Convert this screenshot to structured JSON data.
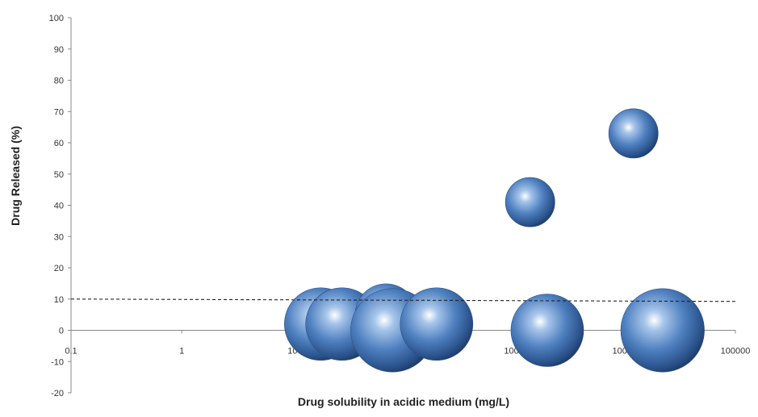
{
  "chart_data": {
    "type": "bubble",
    "title": "",
    "xlabel": "Drug solubility in acidic medium (mg/L)",
    "ylabel": "Drug Released (%)",
    "xscale": "log",
    "xlim": [
      0.1,
      100000
    ],
    "ylim": [
      -20,
      100
    ],
    "x_ticks": [
      "0.1",
      "1",
      "10",
      "100",
      "1000",
      "10000",
      "100000"
    ],
    "y_ticks": [
      "100",
      "90",
      "80",
      "70",
      "60",
      "50",
      "40",
      "30",
      "20",
      "10",
      "0",
      "-10",
      "-20"
    ],
    "grid": false,
    "legend": "none",
    "threshold_line": {
      "y": 10,
      "style": "dashed"
    },
    "bubble_color": "#3c6fb0",
    "points": [
      {
        "x": 18,
        "y": 2,
        "size": 1.0
      },
      {
        "x": 28,
        "y": 2,
        "size": 1.0
      },
      {
        "x": 70,
        "y": 5,
        "size": 0.85
      },
      {
        "x": 80,
        "y": 0,
        "size": 1.15
      },
      {
        "x": 200,
        "y": 2,
        "size": 1.0
      },
      {
        "x": 1400,
        "y": 41,
        "size": 0.68
      },
      {
        "x": 2000,
        "y": 0,
        "size": 1.0
      },
      {
        "x": 12000,
        "y": 63,
        "size": 0.68
      },
      {
        "x": 22000,
        "y": 0,
        "size": 1.15
      }
    ]
  }
}
